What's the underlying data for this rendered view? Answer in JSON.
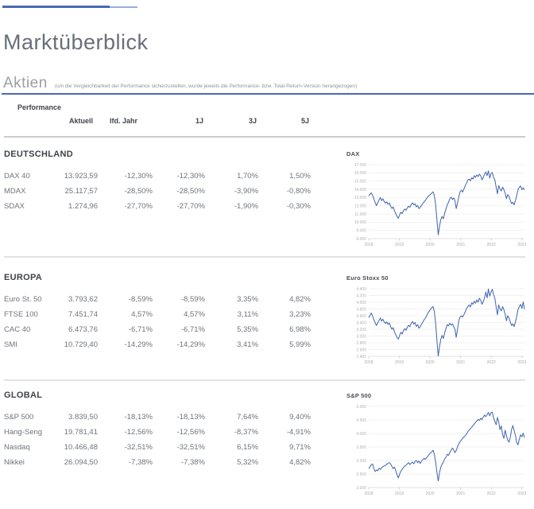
{
  "page": {
    "title": "Marktüberblick",
    "section_heading": "Aktien",
    "section_note": "(um die Vergleichbarkeit der Performance sicherzustellen, wurde jeweils die Performance- bzw. Total-Return-Version herangezogen)"
  },
  "table": {
    "group_label": "Performance",
    "columns": [
      "Aktuell",
      "lfd. Jahr",
      "1J",
      "3J",
      "5J"
    ],
    "sections": [
      {
        "name": "DEUTSCHLAND",
        "rows": [
          {
            "label": "DAX 40",
            "values": [
              "13.923,59",
              "-12,30%",
              "-12,30%",
              "1,70%",
              "1,50%"
            ]
          },
          {
            "label": "MDAX",
            "values": [
              "25.117,57",
              "-28,50%",
              "-28,50%",
              "-3,90%",
              "-0,80%"
            ]
          },
          {
            "label": "SDAX",
            "values": [
              "1.274,96",
              "-27,70%",
              "-27,70%",
              "-1,90%",
              "-0,30%"
            ]
          }
        ]
      },
      {
        "name": "EUROPA",
        "rows": [
          {
            "label": "Euro St. 50",
            "values": [
              "3.793,62",
              "-8,59%",
              "-8,59%",
              "3,35%",
              "4,82%"
            ]
          },
          {
            "label": "FTSE 100",
            "values": [
              "7.451,74",
              "4,57%",
              "4,57%",
              "3,11%",
              "3,23%"
            ]
          },
          {
            "label": "CAC 40",
            "values": [
              "6.473,76",
              "-6,71%",
              "-6,71%",
              "5,35%",
              "6,98%"
            ]
          },
          {
            "label": "SMI",
            "values": [
              "10.729,40",
              "-14,29%",
              "-14,29%",
              "3,41%",
              "5,99%"
            ]
          }
        ]
      },
      {
        "name": "GLOBAL",
        "rows": [
          {
            "label": "S&P 500",
            "values": [
              "3.839,50",
              "-18,13%",
              "-18,13%",
              "7,64%",
              "9,40%"
            ]
          },
          {
            "label": "Hang-Seng",
            "values": [
              "19.781,41",
              "-12,56%",
              "-12,56%",
              "-8,37%",
              "-4,91%"
            ]
          },
          {
            "label": "Nasdaq",
            "values": [
              "10.466,48",
              "-32,51%",
              "-32,51%",
              "6,15%",
              "9,71%"
            ]
          },
          {
            "label": "Nikkei",
            "values": [
              "26.094,50",
              "-7,38%",
              "-7,38%",
              "5,32%",
              "4,82%"
            ]
          }
        ]
      }
    ]
  },
  "colors": {
    "accent_blue": "#4a69b4",
    "accent_blue_light": "#98aedd",
    "chart_line_blue": "#3d64b0",
    "grid_gray": "#ececec",
    "text_dark": "#3f4349",
    "text_body": "#6f747a"
  },
  "chart_data": [
    {
      "type": "line",
      "title": "DAX",
      "x_labels": [
        "2018",
        "2019",
        "2020",
        "2021",
        "2022",
        "2023"
      ],
      "y_tick_labels": [
        "17.000",
        "16.000",
        "15.000",
        "14.000",
        "13.000",
        "12.000",
        "11.000",
        "10.000",
        "9.000",
        "8.000"
      ],
      "y_max": 17000,
      "y_min": 8000,
      "values": [
        13180,
        13420,
        13560,
        13250,
        12850,
        12380,
        12020,
        12350,
        12700,
        12980,
        12620,
        12850,
        12540,
        12320,
        12480,
        12180,
        12340,
        11950,
        11680,
        11850,
        11400,
        11050,
        10700,
        10480,
        10900,
        11200,
        11050,
        11380,
        11600,
        11450,
        11750,
        11950,
        11800,
        12150,
        12350,
        12100,
        12250,
        11850,
        12050,
        11650,
        11800,
        12050,
        12250,
        12480,
        12650,
        12900,
        13100,
        13250,
        13400,
        13550,
        13700,
        13200,
        12200,
        10200,
        8450,
        9500,
        10300,
        10700,
        10400,
        11100,
        11600,
        12100,
        12400,
        12850,
        13050,
        12750,
        12950,
        12650,
        11650,
        12350,
        13100,
        13700,
        13900,
        13650,
        14050,
        14450,
        14750,
        15100,
        15250,
        15050,
        15400,
        15250,
        15650,
        15450,
        15750,
        15550,
        15850,
        15650,
        15150,
        15450,
        15850,
        16100,
        15650,
        16250,
        15350,
        15900,
        16050,
        15450,
        15150,
        14250,
        13450,
        14450,
        14050,
        13800,
        14250,
        13950,
        13550,
        12850,
        13350,
        13150,
        12650,
        12250,
        12420,
        12110,
        12650,
        13250,
        13950,
        14250,
        14400,
        13950,
        14180,
        13923
      ]
    },
    {
      "type": "line",
      "title": "Euro Stoxx 50",
      "x_labels": [
        "2018",
        "2019",
        "2020",
        "2021",
        "2022",
        "2023"
      ],
      "y_tick_labels": [
        "4.400",
        "4.200",
        "4.000",
        "3.800",
        "3.600",
        "3.400",
        "3.200",
        "3.000",
        "2.800",
        "2.600",
        "2.400"
      ],
      "y_max": 4400,
      "y_min": 2400,
      "values": [
        3540,
        3610,
        3680,
        3590,
        3480,
        3390,
        3310,
        3390,
        3460,
        3530,
        3440,
        3500,
        3420,
        3370,
        3420,
        3340,
        3390,
        3280,
        3200,
        3250,
        3120,
        3040,
        2960,
        2910,
        3020,
        3110,
        3060,
        3160,
        3220,
        3170,
        3260,
        3320,
        3270,
        3380,
        3430,
        3350,
        3400,
        3280,
        3340,
        3230,
        3280,
        3350,
        3410,
        3480,
        3530,
        3600,
        3680,
        3730,
        3790,
        3840,
        3870,
        3720,
        3380,
        2850,
        2410,
        2680,
        2900,
        3020,
        2930,
        3100,
        3220,
        3340,
        3300,
        3380,
        3320,
        3360,
        3280,
        3200,
        2960,
        3210,
        3460,
        3560,
        3600,
        3560,
        3640,
        3720,
        3810,
        3870,
        3920,
        3860,
        3980,
        3940,
        4030,
        3970,
        4070,
        4000,
        4120,
        4060,
        3940,
        4020,
        4130,
        4300,
        4130,
        4390,
        4180,
        4300,
        4380,
        4230,
        4120,
        3850,
        3630,
        3920,
        3810,
        3740,
        3870,
        3780,
        3650,
        3450,
        3600,
        3530,
        3410,
        3310,
        3360,
        3280,
        3420,
        3580,
        3780,
        3870,
        3940,
        3820,
        4010,
        3794
      ]
    },
    {
      "type": "line",
      "title": "S&P 500",
      "x_labels": [
        "2018",
        "2019",
        "2020",
        "2021",
        "2022",
        "2023"
      ],
      "y_tick_labels": [
        "5.000",
        "4.500",
        "4.000",
        "3.500",
        "3.000",
        "2.500",
        "2.000"
      ],
      "y_max": 5000,
      "y_min": 2000,
      "values": [
        2700,
        2760,
        2840,
        2870,
        2700,
        2590,
        2650,
        2620,
        2710,
        2670,
        2730,
        2770,
        2800,
        2820,
        2860,
        2900,
        2920,
        2880,
        2780,
        2700,
        2760,
        2620,
        2480,
        2360,
        2500,
        2600,
        2680,
        2740,
        2790,
        2830,
        2870,
        2920,
        2850,
        2900,
        2940,
        2880,
        2970,
        3000,
        2920,
        2980,
        2890,
        2970,
        3030,
        3080,
        3040,
        3110,
        3160,
        3230,
        3280,
        3320,
        3380,
        3230,
        2950,
        2550,
        2240,
        2550,
        2750,
        2870,
        2940,
        3060,
        3120,
        3230,
        3190,
        3290,
        3380,
        3460,
        3390,
        3290,
        3370,
        3510,
        3620,
        3700,
        3760,
        3820,
        3870,
        3920,
        3980,
        4060,
        4130,
        4180,
        4230,
        4290,
        4350,
        4410,
        4460,
        4520,
        4480,
        4560,
        4510,
        4610,
        4680,
        4620,
        4700,
        4780,
        4650,
        4770,
        4790,
        4580,
        4450,
        4320,
        4590,
        4420,
        4140,
        4280,
        3950,
        3820,
        4120,
        3920,
        3760,
        3680,
        3850,
        4150,
        4290,
        4110,
        3920,
        3660,
        3580,
        3780,
        3950,
        3880,
        4010,
        3840
      ]
    }
  ]
}
